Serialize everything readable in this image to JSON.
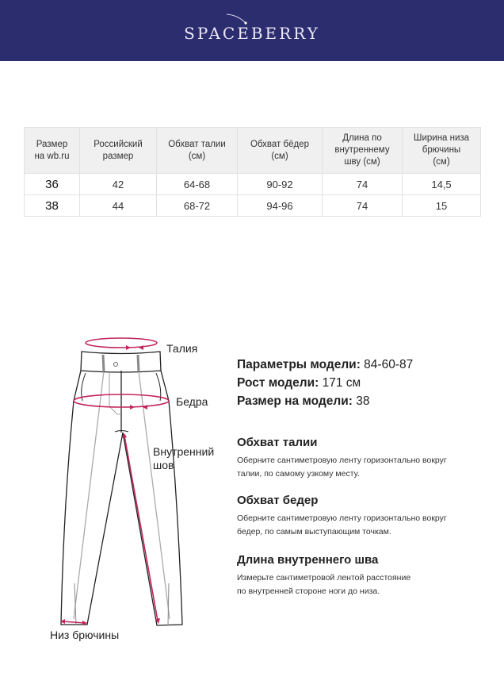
{
  "brand": "SPACEBERRY",
  "table": {
    "headers": [
      "Размер\nна wb.ru",
      "Российский\nразмер",
      "Обхват талии\n(см)",
      "Обхват бёдер\n(см)",
      "Длина по\nвнутреннему\nшву (см)",
      "Ширина низа\nбрючины\n(см)"
    ],
    "rows": [
      [
        "36",
        "42",
        "64-68",
        "90-92",
        "74",
        "14,5"
      ],
      [
        "38",
        "44",
        "68-72",
        "94-96",
        "74",
        "15"
      ]
    ]
  },
  "diagram": {
    "waist": "Талия",
    "hips": "Бедра",
    "inseam_1": "Внутренний",
    "inseam_2": "шов",
    "hem": "Низ брючины",
    "accent_color": "#c2265a"
  },
  "model": {
    "params_label": "Параметры модели:",
    "params_value": " 84-60-87",
    "height_label": "Рост модели:",
    "height_value": " 171 см",
    "size_label": "Размер на модели:",
    "size_value": " 38"
  },
  "sections": [
    {
      "title": "Обхват талии",
      "line1": "Оберните сантиметровую ленту горизонтально вокруг",
      "line2": "талии, по самому узкому месту."
    },
    {
      "title": "Обхват бедер",
      "line1": "Оберните сантиметровую ленту горизонтально вокруг",
      "line2": "бедер, по самым выступающим точкам."
    },
    {
      "title": "Длина внутреннего шва",
      "line1": "Измерьте сантиметровой лентой расстояние",
      "line2": "по внутренней стороне ноги до низа."
    }
  ]
}
